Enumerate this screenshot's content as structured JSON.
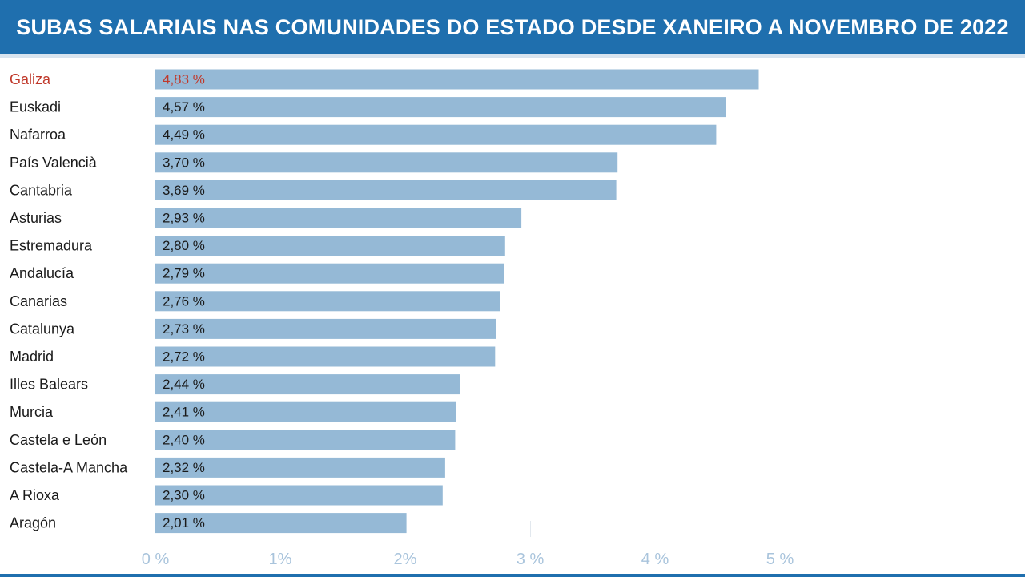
{
  "header": {
    "title": "SUBAS SALARIAIS NAS COMUNIDADES DO ESTADO DESDE XANEIRO A NOVEMBRO DE 2022"
  },
  "colors": {
    "header_bg": "#1f6fae",
    "bar": "#95b9d6",
    "highlight_text": "#c0392b",
    "text": "#1a1a1a",
    "tick_text": "#a9c4dc"
  },
  "chart_data": {
    "type": "bar",
    "orientation": "horizontal",
    "title": "SUBAS SALARIAIS NAS COMUNIDADES DO ESTADO DESDE XANEIRO A NOVEMBRO DE 2022",
    "categories": [
      "Galiza",
      "Euskadi",
      "Nafarroa",
      "País Valencià",
      "Cantabria",
      "Asturias",
      "Estremadura",
      "Andalucía",
      "Canarias",
      "Catalunya",
      "Madrid",
      "Illes Balears",
      "Murcia",
      "Castela e León",
      "Castela-A Mancha",
      "A Rioxa",
      "Aragón"
    ],
    "values": [
      4.83,
      4.57,
      4.49,
      3.7,
      3.69,
      2.93,
      2.8,
      2.79,
      2.76,
      2.73,
      2.72,
      2.44,
      2.41,
      2.4,
      2.32,
      2.3,
      2.01
    ],
    "value_labels": [
      "4,83 %",
      "4,57 %",
      "4,49 %",
      "3,70 %",
      "3,69 %",
      "2,93 %",
      "2,80 %",
      "2,79 %",
      "2,76 %",
      "2,73 %",
      "2,72 %",
      "2,44 %",
      "2,41 %",
      "2,40 %",
      "2,32 %",
      "2,30 %",
      "2,01 %"
    ],
    "highlight_category": "Galiza",
    "xlim": [
      0,
      5
    ],
    "xticks": [
      0,
      1,
      2,
      3,
      4,
      5
    ],
    "xtick_labels": [
      "0 %",
      "1%",
      "2%",
      "3 %",
      "4 %",
      "5 %"
    ],
    "grid": false
  }
}
